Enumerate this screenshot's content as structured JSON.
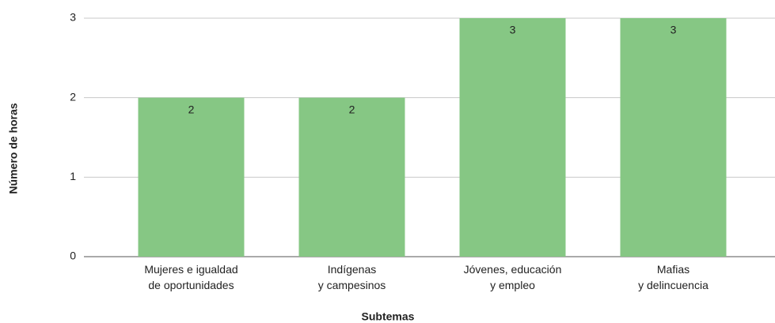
{
  "chart_data": {
    "type": "bar",
    "categories": [
      "Mujeres e igualdad\nde oportunidades",
      "Indígenas\ny campesinos",
      "Jóvenes, educación\ny empleo",
      "Mafias\ny delincuencia"
    ],
    "values": [
      2,
      2,
      3,
      3
    ],
    "color": "#86c784",
    "ylim": [
      0,
      3
    ],
    "yticks": [
      0,
      1,
      2,
      3
    ],
    "grid": true,
    "xlabel": "Subtemas",
    "ylabel": "Número de horas"
  }
}
